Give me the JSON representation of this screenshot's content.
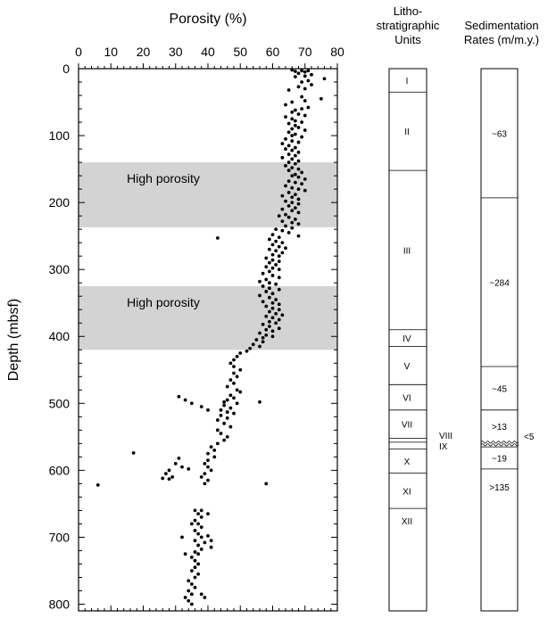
{
  "chart_data": {
    "type": "scatter",
    "title": "",
    "xlabel": "Porosity (%)",
    "ylabel": "Depth (mbsf)",
    "xlim": [
      0,
      80
    ],
    "ylim": [
      0,
      810
    ],
    "y_inverted": true,
    "x_ticks": [
      0,
      10,
      20,
      30,
      40,
      50,
      60,
      70,
      80
    ],
    "y_ticks": [
      0,
      100,
      200,
      300,
      400,
      500,
      600,
      700,
      800
    ],
    "grid": false,
    "x_axis_position": "top",
    "series": [
      {
        "marker_color": "#000000",
        "points": [
          [
            66,
            2
          ],
          [
            67,
            4
          ],
          [
            69,
            3
          ],
          [
            70,
            5
          ],
          [
            71,
            3
          ],
          [
            68,
            7
          ],
          [
            72,
            9
          ],
          [
            70,
            11
          ],
          [
            67,
            12
          ],
          [
            76,
            15
          ],
          [
            71,
            18
          ],
          [
            69,
            20
          ],
          [
            72,
            24
          ],
          [
            68,
            27
          ],
          [
            70,
            30
          ],
          [
            65,
            32
          ],
          [
            75,
            45
          ],
          [
            69,
            42
          ],
          [
            70,
            48
          ],
          [
            66,
            50
          ],
          [
            64,
            54
          ],
          [
            71,
            58
          ],
          [
            69,
            60
          ],
          [
            67,
            62
          ],
          [
            66,
            65
          ],
          [
            68,
            68
          ],
          [
            70,
            70
          ],
          [
            64,
            72
          ],
          [
            66,
            75
          ],
          [
            67,
            78
          ],
          [
            69,
            80
          ],
          [
            65,
            82
          ],
          [
            67,
            85
          ],
          [
            68,
            88
          ],
          [
            66,
            90
          ],
          [
            70,
            92
          ],
          [
            65,
            95
          ],
          [
            67,
            98
          ],
          [
            66,
            100
          ],
          [
            69,
            102
          ],
          [
            64,
            105
          ],
          [
            66,
            108
          ],
          [
            68,
            110
          ],
          [
            63,
            112
          ],
          [
            65,
            115
          ],
          [
            67,
            118
          ],
          [
            64,
            120
          ],
          [
            66,
            122
          ],
          [
            68,
            125
          ],
          [
            65,
            128
          ],
          [
            67,
            130
          ],
          [
            63,
            133
          ],
          [
            66,
            135
          ],
          [
            68,
            138
          ],
          [
            65,
            140
          ],
          [
            67,
            142
          ],
          [
            64,
            145
          ],
          [
            66,
            148
          ],
          [
            68,
            150
          ],
          [
            65,
            152
          ],
          [
            69,
            155
          ],
          [
            67,
            158
          ],
          [
            66,
            160
          ],
          [
            68,
            162
          ],
          [
            70,
            165
          ],
          [
            65,
            168
          ],
          [
            67,
            170
          ],
          [
            69,
            172
          ],
          [
            64,
            175
          ],
          [
            66,
            178
          ],
          [
            68,
            180
          ],
          [
            70,
            182
          ],
          [
            65,
            185
          ],
          [
            67,
            188
          ],
          [
            63,
            190
          ],
          [
            66,
            192
          ],
          [
            68,
            195
          ],
          [
            64,
            198
          ],
          [
            66,
            200
          ],
          [
            68,
            202
          ],
          [
            65,
            205
          ],
          [
            67,
            208
          ],
          [
            63,
            210
          ],
          [
            66,
            212
          ],
          [
            68,
            215
          ],
          [
            64,
            218
          ],
          [
            62,
            220
          ],
          [
            65,
            222
          ],
          [
            67,
            225
          ],
          [
            63,
            228
          ],
          [
            66,
            230
          ],
          [
            68,
            232
          ],
          [
            64,
            235
          ],
          [
            66,
            238
          ],
          [
            61,
            240
          ],
          [
            63,
            242
          ],
          [
            65,
            245
          ],
          [
            60,
            248
          ],
          [
            68,
            250
          ],
          [
            62,
            252
          ],
          [
            59,
            255
          ],
          [
            61,
            258
          ],
          [
            63,
            260
          ],
          [
            60,
            263
          ],
          [
            62,
            266
          ],
          [
            64,
            268
          ],
          [
            59,
            270
          ],
          [
            61,
            272
          ],
          [
            63,
            275
          ],
          [
            60,
            278
          ],
          [
            62,
            280
          ],
          [
            58,
            283
          ],
          [
            60,
            286
          ],
          [
            62,
            288
          ],
          [
            59,
            290
          ],
          [
            61,
            293
          ],
          [
            58,
            296
          ],
          [
            60,
            298
          ],
          [
            62,
            300
          ],
          [
            59,
            303
          ],
          [
            57,
            306
          ],
          [
            60,
            309
          ],
          [
            62,
            312
          ],
          [
            58,
            315
          ],
          [
            56,
            318
          ],
          [
            59,
            320
          ],
          [
            61,
            322
          ],
          [
            57,
            325
          ],
          [
            59,
            328
          ],
          [
            62,
            330
          ],
          [
            58,
            333
          ],
          [
            60,
            336
          ],
          [
            56,
            339
          ],
          [
            59,
            342
          ],
          [
            61,
            345
          ],
          [
            57,
            348
          ],
          [
            60,
            350
          ],
          [
            62,
            352
          ],
          [
            58,
            355
          ],
          [
            60,
            358
          ],
          [
            62,
            360
          ],
          [
            59,
            363
          ],
          [
            61,
            366
          ],
          [
            63,
            368
          ],
          [
            58,
            370
          ],
          [
            60,
            372
          ],
          [
            62,
            375
          ],
          [
            59,
            378
          ],
          [
            61,
            380
          ],
          [
            57,
            382
          ],
          [
            59,
            385
          ],
          [
            62,
            388
          ],
          [
            58,
            390
          ],
          [
            60,
            392
          ],
          [
            56,
            395
          ],
          [
            58,
            398
          ],
          [
            60,
            400
          ],
          [
            57,
            402
          ],
          [
            55,
            405
          ],
          [
            57,
            408
          ],
          [
            54,
            412
          ],
          [
            56,
            415
          ],
          [
            53,
            418
          ],
          [
            52,
            422
          ],
          [
            50,
            425
          ],
          [
            49,
            430
          ],
          [
            48,
            435
          ],
          [
            47,
            440
          ],
          [
            48,
            445
          ],
          [
            50,
            450
          ],
          [
            48,
            455
          ],
          [
            49,
            460
          ],
          [
            47,
            465
          ],
          [
            48,
            470
          ],
          [
            46,
            475
          ],
          [
            49,
            480
          ],
          [
            50,
            483
          ],
          [
            47,
            488
          ],
          [
            48,
            492
          ],
          [
            46,
            495
          ],
          [
            49,
            500
          ],
          [
            45,
            503
          ],
          [
            47,
            507
          ],
          [
            44,
            510
          ],
          [
            46,
            513
          ],
          [
            48,
            515
          ],
          [
            44,
            518
          ],
          [
            46,
            522
          ],
          [
            43,
            525
          ],
          [
            45,
            530
          ],
          [
            47,
            535
          ],
          [
            43,
            540
          ],
          [
            44,
            545
          ],
          [
            46,
            550
          ],
          [
            45,
            555
          ],
          [
            43,
            560
          ],
          [
            41,
            565
          ],
          [
            42,
            570
          ],
          [
            40,
            575
          ],
          [
            42,
            580
          ],
          [
            40,
            585
          ],
          [
            39,
            590
          ],
          [
            40,
            595
          ],
          [
            41,
            600
          ],
          [
            39,
            605
          ],
          [
            38,
            610
          ],
          [
            40,
            615
          ],
          [
            39,
            620
          ],
          [
            31,
            582
          ],
          [
            30,
            590
          ],
          [
            32,
            595
          ],
          [
            28,
            600
          ],
          [
            27,
            605
          ],
          [
            29,
            610
          ],
          [
            28,
            613
          ],
          [
            26,
            612
          ],
          [
            34,
            598
          ],
          [
            17,
            574
          ],
          [
            6,
            622
          ],
          [
            58,
            620
          ],
          [
            31,
            490
          ],
          [
            33,
            495
          ],
          [
            35,
            500
          ],
          [
            38,
            505
          ],
          [
            40,
            510
          ],
          [
            45,
            498
          ],
          [
            56,
            498
          ],
          [
            43,
            253
          ],
          [
            36,
            660
          ],
          [
            37,
            665
          ],
          [
            38,
            670
          ],
          [
            36,
            675
          ],
          [
            37,
            680
          ],
          [
            38,
            685
          ],
          [
            36,
            690
          ],
          [
            37,
            695
          ],
          [
            38,
            700
          ],
          [
            40,
            698
          ],
          [
            36,
            705
          ],
          [
            39,
            708
          ],
          [
            37,
            712
          ],
          [
            41,
            715
          ],
          [
            38,
            718
          ],
          [
            36,
            722
          ],
          [
            37,
            725
          ],
          [
            35,
            730
          ],
          [
            36,
            735
          ],
          [
            37,
            740
          ],
          [
            36,
            745
          ],
          [
            35,
            750
          ],
          [
            37,
            755
          ],
          [
            36,
            760
          ],
          [
            34,
            765
          ],
          [
            35,
            770
          ],
          [
            36,
            775
          ],
          [
            34,
            780
          ],
          [
            35,
            785
          ],
          [
            33,
            790
          ],
          [
            34,
            795
          ],
          [
            35,
            800
          ],
          [
            38,
            785
          ],
          [
            39,
            790
          ],
          [
            32,
            700
          ],
          [
            33,
            725
          ],
          [
            41,
            705
          ],
          [
            38,
            660
          ],
          [
            40,
            665
          ],
          [
            35,
            680
          ]
        ]
      }
    ],
    "shaded_bands": [
      {
        "label": "High porosity",
        "depth_range": [
          140,
          237
        ]
      },
      {
        "label": "High porosity",
        "depth_range": [
          325,
          420
        ]
      }
    ],
    "lithostratigraphic_units": {
      "title_lines": [
        "Litho-",
        "stratigraphic",
        "Units"
      ],
      "units": [
        {
          "label": "I",
          "top": 0,
          "base": 35
        },
        {
          "label": "II",
          "top": 35,
          "base": 152
        },
        {
          "label": "III",
          "top": 152,
          "base": 390
        },
        {
          "label": "IV",
          "top": 390,
          "base": 415
        },
        {
          "label": "V",
          "top": 415,
          "base": 472
        },
        {
          "label": "VI",
          "top": 472,
          "base": 510
        },
        {
          "label": "VII",
          "top": 510,
          "base": 552
        },
        {
          "label": "VIII",
          "top": 552,
          "base": 558
        },
        {
          "label": "IX",
          "top": 558,
          "base": 568
        },
        {
          "label": "X",
          "top": 568,
          "base": 604
        },
        {
          "label": "XI",
          "top": 604,
          "base": 657
        },
        {
          "label": "XII",
          "top": 657,
          "base": 810
        }
      ]
    },
    "sedimentation_rates": {
      "title_lines": [
        "Sedimentation",
        "Rates (m/m.y.)"
      ],
      "intervals": [
        {
          "label": "~63",
          "top": 0,
          "base": 193
        },
        {
          "label": "~284",
          "top": 193,
          "base": 445
        },
        {
          "label": "~45",
          "top": 445,
          "base": 510
        },
        {
          "label": ">13",
          "top": 510,
          "base": 558
        },
        {
          "label": "<5",
          "top": 558,
          "base": 565,
          "wavy": true
        },
        {
          "label": "~19",
          "top": 565,
          "base": 598
        },
        {
          "label": ">135",
          "top": 598,
          "base": 810
        }
      ]
    }
  }
}
